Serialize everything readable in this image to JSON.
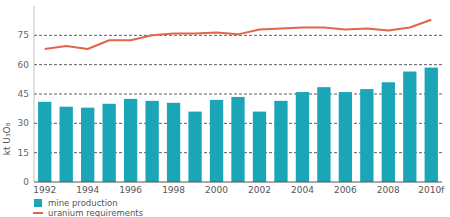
{
  "chart_data": {
    "type": "bar",
    "ylabel": "kt U₃O₈",
    "categories": [
      "1992",
      null,
      "1994",
      null,
      "1996",
      null,
      "1998",
      null,
      "2000",
      null,
      "2002",
      null,
      "2004",
      null,
      "2006",
      null,
      "2008",
      null,
      "2010f"
    ],
    "series": [
      {
        "name": "mine production",
        "type": "bar",
        "color": "#1ba6b7",
        "values": [
          41,
          38.5,
          38,
          40,
          42.5,
          41.5,
          40.5,
          36,
          42,
          43.5,
          36,
          41.5,
          46,
          48.5,
          46,
          47.5,
          51,
          56.5,
          58.5
        ]
      },
      {
        "name": "uranium requirements",
        "type": "line",
        "color": "#e0664a",
        "values": [
          68,
          69.5,
          68,
          72.5,
          72.5,
          75,
          76,
          76,
          76.5,
          75.5,
          78,
          78.5,
          79,
          79,
          78,
          78.5,
          77.5,
          79,
          83
        ]
      }
    ],
    "ylim": [
      0,
      90
    ],
    "yticks": [
      0,
      15,
      30,
      45,
      60,
      75
    ],
    "grid": true,
    "legend": "bottom"
  }
}
